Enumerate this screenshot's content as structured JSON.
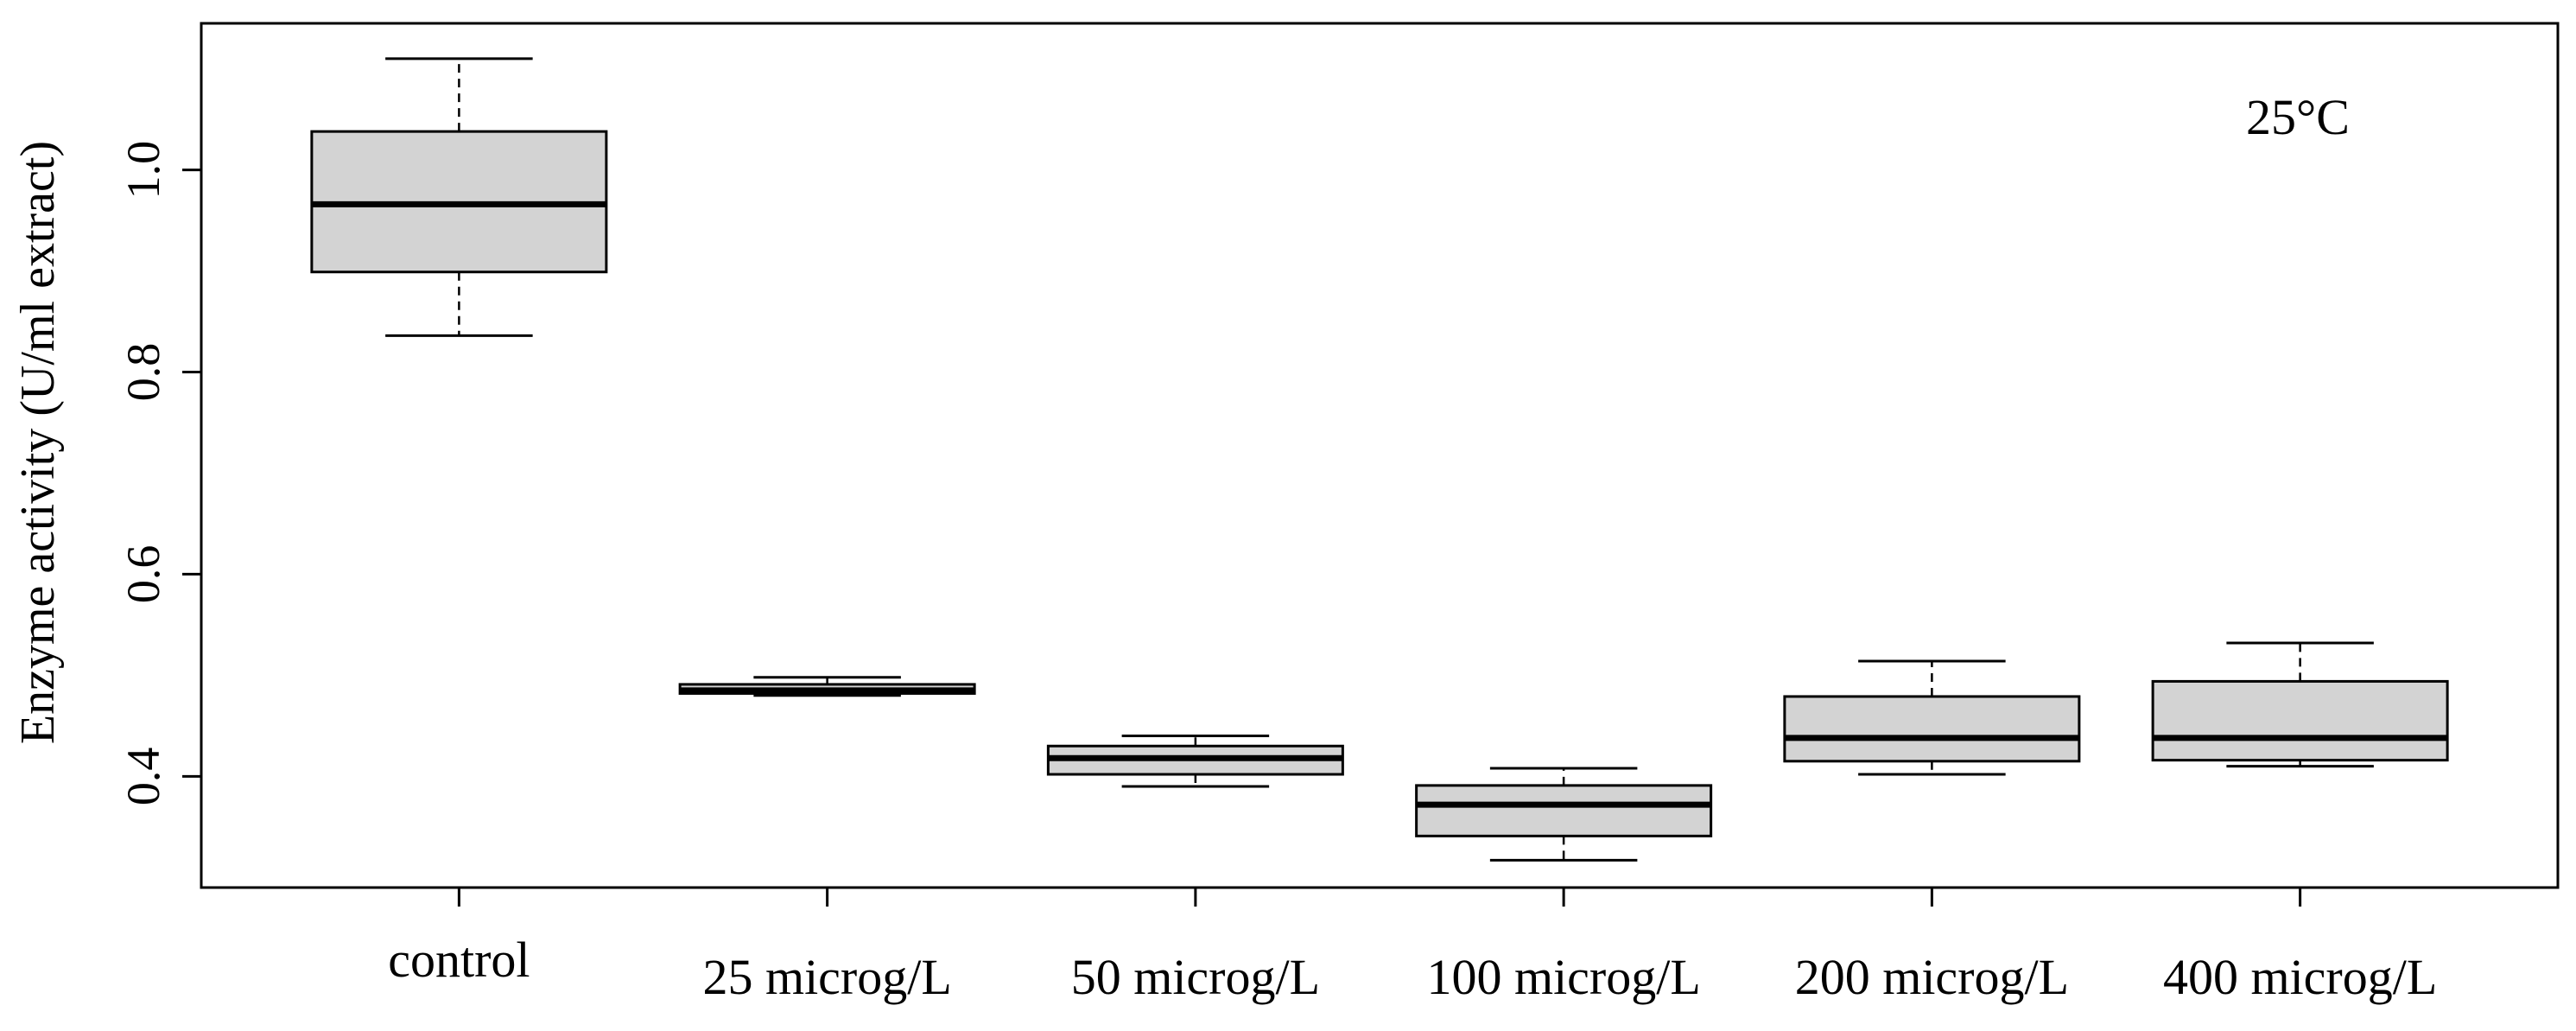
{
  "chart_data": {
    "type": "boxplot",
    "title": "",
    "annotation": "25°C",
    "xlabel": "",
    "ylabel": "Enzyme activity (U/ml extract)",
    "ylim": [
      0.29,
      1.145
    ],
    "yticks": [
      0.4,
      0.6,
      0.8,
      1.0
    ],
    "ytick_labels": [
      "0.4",
      "0.6",
      "0.8",
      "1.0"
    ],
    "categories": [
      "control",
      "25 microg/L",
      "50 microg/L",
      "100 microg/L",
      "200 microg/L",
      "400 microg/L"
    ],
    "boxes": [
      {
        "name": "control",
        "whisker_low": 0.836,
        "q1": 0.899,
        "median": 0.966,
        "q3": 1.038,
        "whisker_high": 1.11
      },
      {
        "name": "25 microg/L",
        "whisker_low": 0.48,
        "q1": 0.482,
        "median": 0.485,
        "q3": 0.491,
        "whisker_high": 0.498
      },
      {
        "name": "50 microg/L",
        "whisker_low": 0.39,
        "q1": 0.402,
        "median": 0.418,
        "q3": 0.43,
        "whisker_high": 0.44
      },
      {
        "name": "100 microg/L",
        "whisker_low": 0.317,
        "q1": 0.341,
        "median": 0.372,
        "q3": 0.391,
        "whisker_high": 0.408
      },
      {
        "name": "200 microg/L",
        "whisker_low": 0.402,
        "q1": 0.415,
        "median": 0.438,
        "q3": 0.479,
        "whisker_high": 0.514
      },
      {
        "name": "400 microg/L",
        "whisker_low": 0.41,
        "q1": 0.416,
        "median": 0.438,
        "q3": 0.494,
        "whisker_high": 0.532
      }
    ],
    "colors": {
      "box_fill": "#d3d3d3",
      "stroke": "#000000"
    }
  }
}
